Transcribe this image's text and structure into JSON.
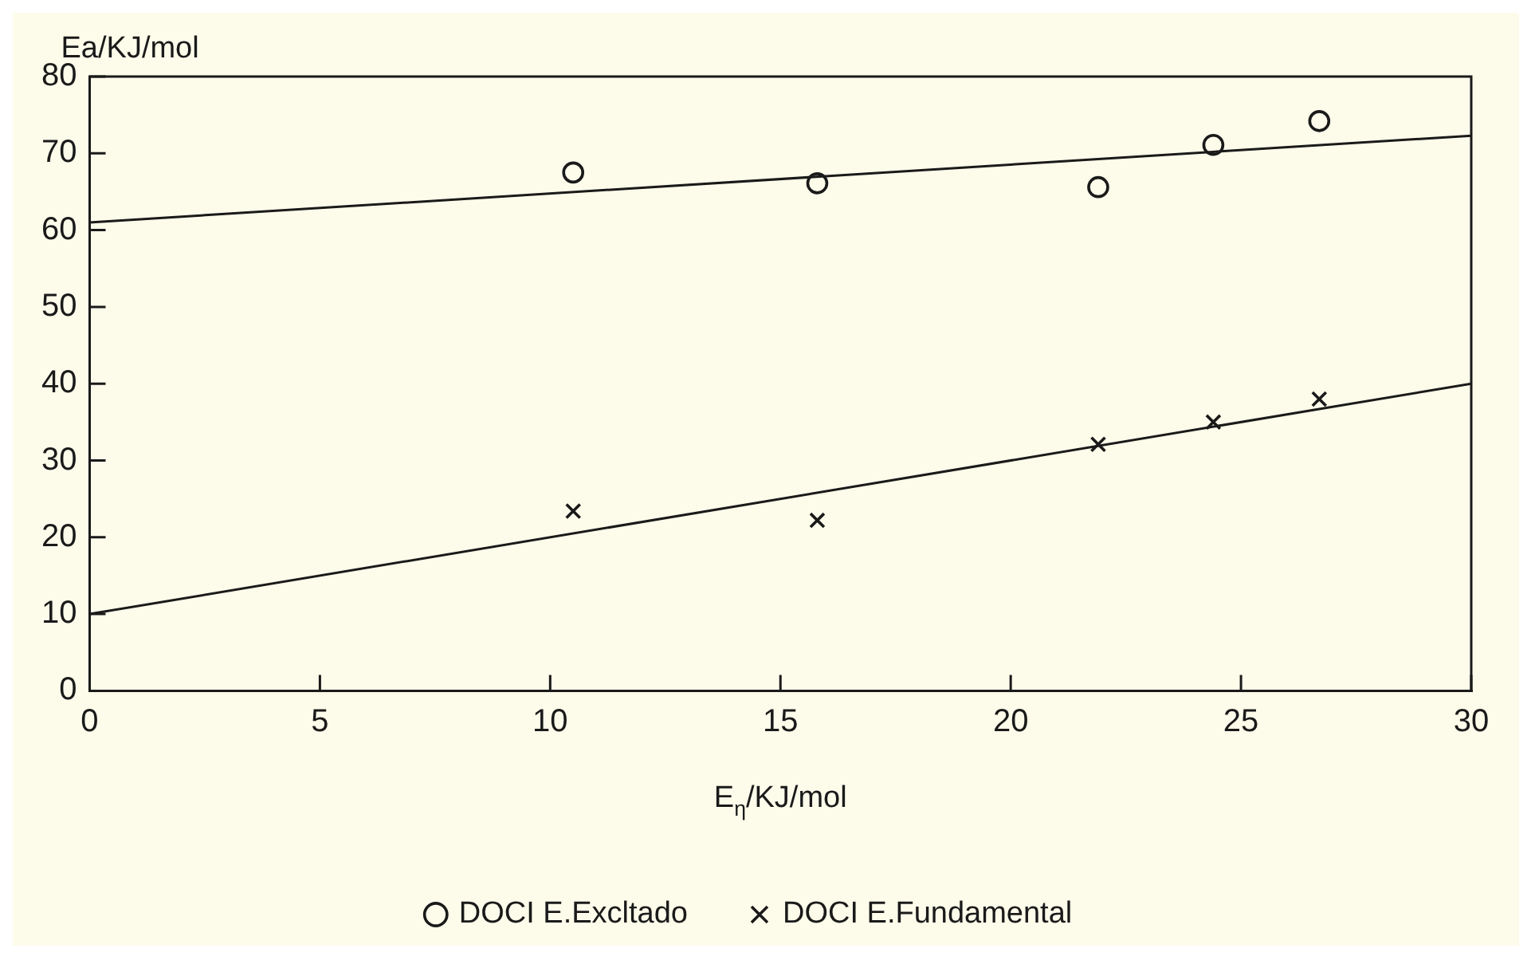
{
  "chart_data": {
    "type": "scatter",
    "xlabel": "E$_{η}$/KJ/mol",
    "ylabel": "Ea/KJ/mol",
    "xlim": [
      0,
      30
    ],
    "xticks": [
      0,
      5,
      10,
      15,
      20,
      25,
      30
    ],
    "ylim": [
      0,
      80
    ],
    "yticks": [
      0,
      10,
      20,
      30,
      40,
      50,
      60,
      70,
      80
    ],
    "grid": false,
    "legend": "bottom",
    "series": [
      {
        "name": "DOCI E.Excltado",
        "color": "#1a1a1a",
        "marker": "circle",
        "x": [
          10.5,
          15.8,
          21.9,
          24.4,
          26.7
        ],
        "values": [
          67.5,
          66.1,
          65.6,
          71.1,
          74.2
        ]
      },
      {
        "name": "DOCI E.Fundamental",
        "color": "#1a1a1a",
        "marker": "cross",
        "x": [
          10.5,
          15.8,
          21.9,
          24.4,
          26.7
        ],
        "values": [
          23.4,
          22.2,
          32.1,
          35.0,
          38.0
        ]
      },
      {
        "type": "line",
        "color": "#1a1a1a",
        "marker": "none",
        "x": [
          0,
          30
        ],
        "values": [
          61,
          72.3
        ]
      },
      {
        "type": "line",
        "color": "#1a1a1a",
        "marker": "none",
        "x": [
          0,
          30
        ],
        "values": [
          10,
          40
        ]
      }
    ]
  }
}
